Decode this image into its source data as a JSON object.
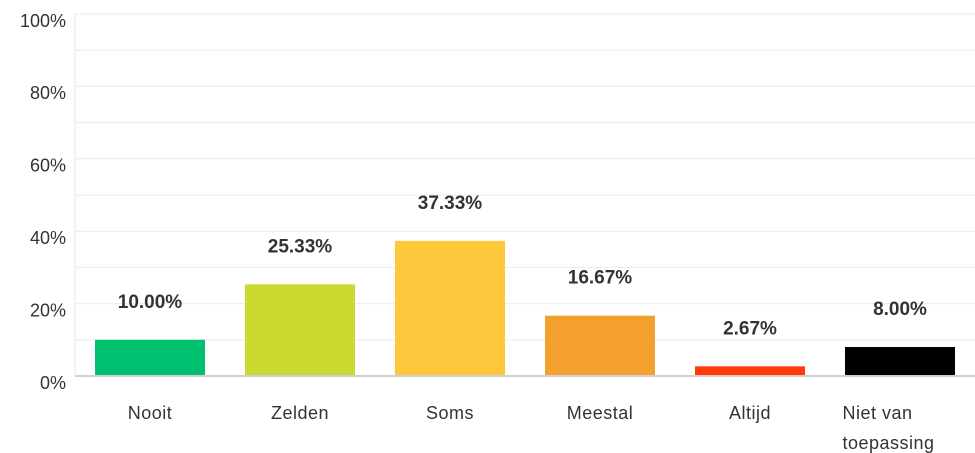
{
  "chart_data": {
    "type": "bar",
    "categories": [
      "Nooit",
      "Zelden",
      "Soms",
      "Meestal",
      "Altijd",
      "Niet van toepassing"
    ],
    "values": [
      10,
      25.33,
      37.33,
      16.67,
      2.67,
      8
    ],
    "value_labels": [
      "10.00%",
      "25.33%",
      "37.33%",
      "16.67%",
      "2.67%",
      "8.00%"
    ],
    "colors": [
      "#00bf6f",
      "#cbd931",
      "#fdc83b",
      "#f3a02f",
      "#ff3a0a",
      "#000000"
    ],
    "ylim": [
      0,
      100
    ],
    "yticks": [
      {
        "value": 0,
        "label": "0%"
      },
      {
        "value": 20,
        "label": "20%"
      },
      {
        "value": 40,
        "label": "40%"
      },
      {
        "value": 60,
        "label": "60%"
      },
      {
        "value": 80,
        "label": "80%"
      },
      {
        "value": 100,
        "label": "100%"
      }
    ],
    "grid_lines": [
      0,
      10,
      20,
      30,
      40,
      50,
      60,
      70,
      80,
      90,
      100
    ],
    "grid": true
  }
}
